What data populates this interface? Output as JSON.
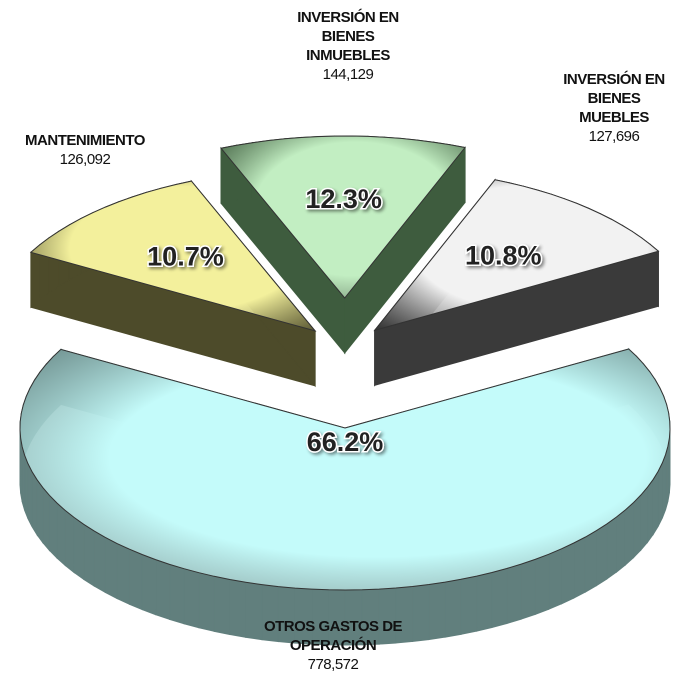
{
  "chart_data": {
    "type": "pie3d",
    "categories": [
      "OTROS GASTOS DE OPERACIÓN",
      "MANTENIMIENTO",
      "INVERSIÓN EN BIENES INMUEBLES",
      "INVERSIÓN EN BIENES MUEBLES"
    ],
    "values": [
      778572,
      126092,
      144129,
      127696
    ],
    "value_labels": [
      "778,572",
      "126,092",
      "144,129",
      "127,696"
    ],
    "percentages": [
      66.2,
      10.7,
      12.3,
      10.8
    ],
    "percentage_labels": [
      "66.2%",
      "10.7%",
      "12.3%",
      "10.8%"
    ],
    "colors": [
      "#c4fbfa",
      "#f3f09c",
      "#c2eec2",
      "#f2f2f2"
    ],
    "side_colors": [
      "#617f7d",
      "#4d4b2a",
      "#3e5c3e",
      "#3a3a3a"
    ]
  }
}
